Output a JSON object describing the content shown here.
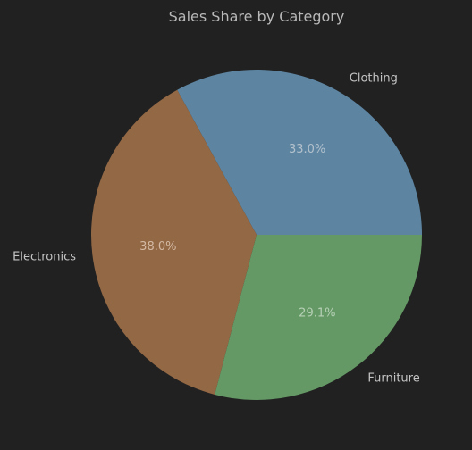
{
  "chart_data": {
    "type": "pie",
    "title": "Sales Share by Category",
    "slices": [
      {
        "label": "Clothing",
        "value": 33.0,
        "pct_text": "33.0%",
        "color": "#5d85a2",
        "text_color": "#b3c1cc"
      },
      {
        "label": "Electronics",
        "value": 38.0,
        "pct_text": "38.0%",
        "color": "#936845",
        "text_color": "#d3b9a3"
      },
      {
        "label": "Furniture",
        "value": 29.1,
        "pct_text": "29.1%",
        "color": "#649965",
        "text_color": "#b6d0b5"
      }
    ],
    "start_angle_deg": 0,
    "direction": "counterclockwise"
  },
  "colors": {
    "background": "#212121",
    "text": "#c4c4c4"
  }
}
